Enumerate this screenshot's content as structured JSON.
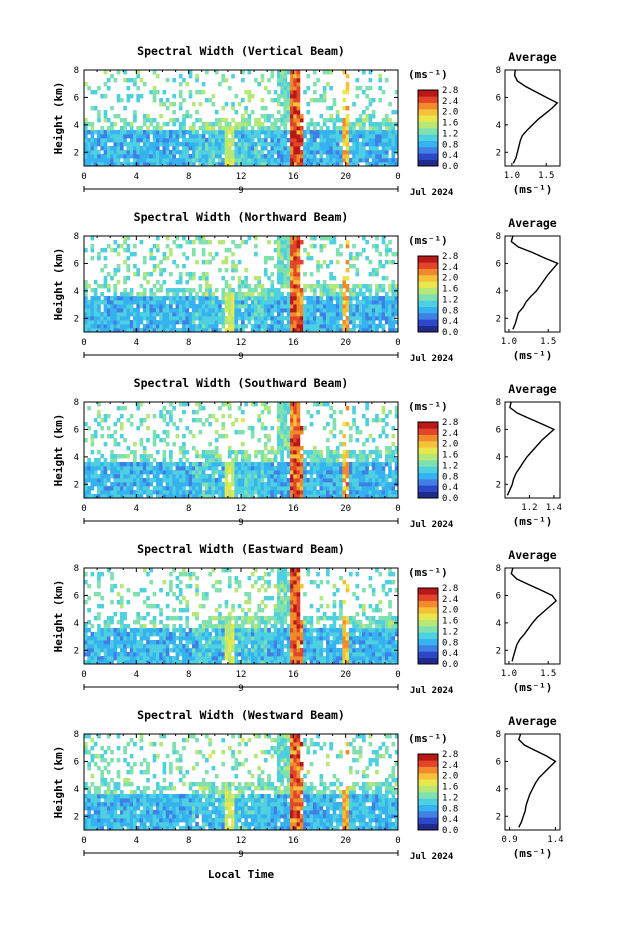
{
  "figure": {
    "xlabel": "Local Time",
    "date_label": "Jul 2024",
    "day_label": "9",
    "unit_label": "(ms⁻¹)",
    "avg_title": "Average",
    "colorbar_ticks": [
      "2.8",
      "2.4",
      "2.0",
      "1.6",
      "1.2",
      "0.8",
      "0.4",
      "0.0"
    ],
    "colormap": [
      "#1f2a8c",
      "#2a48c8",
      "#3f7fe6",
      "#35b2ef",
      "#4fd0e0",
      "#7fe0b0",
      "#b6e878",
      "#e8e84e",
      "#f6c13a",
      "#f08a2a",
      "#e2452a",
      "#b81818"
    ]
  },
  "chart_data": [
    {
      "type": "heatmap",
      "title": "Spectral Width (Vertical Beam)",
      "ylabel": "Height (km)",
      "xlabel": "",
      "x_ticks": [
        "0",
        "4",
        "8",
        "12",
        "16",
        "20",
        "0"
      ],
      "y_ticks": [
        "2",
        "4",
        "6",
        "8"
      ],
      "xlim": [
        0,
        24
      ],
      "ylim": [
        1,
        8
      ],
      "colorbar": {
        "label": "(ms⁻¹)",
        "range": [
          0.0,
          2.8
        ]
      },
      "average_profile": {
        "title": "Average",
        "xlabel": "(ms⁻¹)",
        "x_ticks": [
          "1.0",
          "1.5"
        ],
        "xlim": [
          0.9,
          1.7
        ],
        "y_ticks": [
          "2",
          "4",
          "6",
          "8"
        ],
        "ylim": [
          1,
          8
        ],
        "height": [
          1.2,
          1.6,
          2.0,
          2.4,
          2.8,
          3.2,
          3.6,
          4.0,
          4.4,
          4.8,
          5.2,
          5.6,
          6.0,
          6.4,
          6.8,
          7.2,
          7.6,
          8.0
        ],
        "value": [
          1.02,
          1.06,
          1.08,
          1.1,
          1.12,
          1.15,
          1.22,
          1.3,
          1.38,
          1.48,
          1.58,
          1.66,
          1.5,
          1.35,
          1.2,
          1.08,
          1.04,
          1.05
        ]
      }
    },
    {
      "type": "heatmap",
      "title": "Spectral Width (Northward Beam)",
      "ylabel": "Height (km)",
      "xlabel": "",
      "x_ticks": [
        "0",
        "4",
        "8",
        "12",
        "16",
        "20",
        "0"
      ],
      "y_ticks": [
        "2",
        "4",
        "6",
        "8"
      ],
      "xlim": [
        0,
        24
      ],
      "ylim": [
        1,
        8
      ],
      "colorbar": {
        "label": "(ms⁻¹)",
        "range": [
          0.0,
          2.8
        ]
      },
      "average_profile": {
        "title": "Average",
        "xlabel": "(ms⁻¹)",
        "x_ticks": [
          "1.0",
          "1.5"
        ],
        "xlim": [
          0.95,
          1.65
        ],
        "y_ticks": [
          "2",
          "4",
          "6",
          "8"
        ],
        "ylim": [
          1,
          8
        ],
        "height": [
          1.2,
          1.6,
          2.0,
          2.4,
          2.8,
          3.2,
          3.6,
          4.0,
          4.4,
          4.8,
          5.2,
          5.6,
          6.0,
          6.4,
          6.8,
          7.2,
          7.6,
          8.0
        ],
        "value": [
          1.05,
          1.08,
          1.1,
          1.12,
          1.18,
          1.22,
          1.28,
          1.35,
          1.4,
          1.45,
          1.5,
          1.56,
          1.62,
          1.45,
          1.3,
          1.12,
          1.03,
          1.05
        ]
      }
    },
    {
      "type": "heatmap",
      "title": "Spectral Width (Southward Beam)",
      "ylabel": "Height (km)",
      "xlabel": "",
      "x_ticks": [
        "0",
        "4",
        "8",
        "12",
        "16",
        "20",
        "0"
      ],
      "y_ticks": [
        "2",
        "4",
        "6",
        "8"
      ],
      "xlim": [
        0,
        24
      ],
      "ylim": [
        1,
        8
      ],
      "colorbar": {
        "label": "(ms⁻¹)",
        "range": [
          0.0,
          2.8
        ]
      },
      "average_profile": {
        "title": "Average",
        "xlabel": "(ms⁻¹)",
        "x_ticks": [
          "1.2",
          "1.4"
        ],
        "xlim": [
          1.0,
          1.45
        ],
        "y_ticks": [
          "2",
          "4",
          "6",
          "8"
        ],
        "ylim": [
          1,
          8
        ],
        "height": [
          1.2,
          1.6,
          2.0,
          2.4,
          2.8,
          3.2,
          3.6,
          4.0,
          4.4,
          4.8,
          5.2,
          5.6,
          6.0,
          6.4,
          6.8,
          7.2,
          7.6,
          8.0
        ],
        "value": [
          1.02,
          1.04,
          1.06,
          1.07,
          1.09,
          1.12,
          1.15,
          1.18,
          1.22,
          1.26,
          1.3,
          1.35,
          1.4,
          1.3,
          1.2,
          1.1,
          1.04,
          1.05
        ]
      }
    },
    {
      "type": "heatmap",
      "title": "Spectral Width (Eastward Beam)",
      "ylabel": "Height (km)",
      "xlabel": "",
      "x_ticks": [
        "0",
        "4",
        "8",
        "12",
        "16",
        "20",
        "0"
      ],
      "y_ticks": [
        "2",
        "4",
        "6",
        "8"
      ],
      "xlim": [
        0,
        24
      ],
      "ylim": [
        1,
        8
      ],
      "colorbar": {
        "label": "(ms⁻¹)",
        "range": [
          0.0,
          2.8
        ]
      },
      "average_profile": {
        "title": "Average",
        "xlabel": "(ms⁻¹)",
        "x_ticks": [
          "1.0",
          "1.5"
        ],
        "xlim": [
          0.95,
          1.65
        ],
        "y_ticks": [
          "2",
          "4",
          "6",
          "8"
        ],
        "ylim": [
          1,
          8
        ],
        "height": [
          1.2,
          1.6,
          2.0,
          2.4,
          2.8,
          3.2,
          3.6,
          4.0,
          4.4,
          4.8,
          5.2,
          5.6,
          6.0,
          6.4,
          6.8,
          7.2,
          7.6,
          8.0
        ],
        "value": [
          1.04,
          1.06,
          1.08,
          1.1,
          1.14,
          1.2,
          1.25,
          1.3,
          1.36,
          1.44,
          1.52,
          1.6,
          1.55,
          1.4,
          1.25,
          1.1,
          1.03,
          1.05
        ]
      }
    },
    {
      "type": "heatmap",
      "title": "Spectral Width (Westward Beam)",
      "ylabel": "Height (km)",
      "xlabel": "Local Time",
      "x_ticks": [
        "0",
        "4",
        "8",
        "12",
        "16",
        "20",
        "0"
      ],
      "y_ticks": [
        "2",
        "4",
        "6",
        "8"
      ],
      "xlim": [
        0,
        24
      ],
      "ylim": [
        1,
        8
      ],
      "colorbar": {
        "label": "(ms⁻¹)",
        "range": [
          0.0,
          2.8
        ]
      },
      "average_profile": {
        "title": "Average",
        "xlabel": "(ms⁻¹)",
        "x_ticks": [
          "0.9",
          "1.4"
        ],
        "xlim": [
          0.85,
          1.45
        ],
        "y_ticks": [
          "2",
          "4",
          "6",
          "8"
        ],
        "ylim": [
          1,
          8
        ],
        "height": [
          1.2,
          1.6,
          2.0,
          2.4,
          2.8,
          3.2,
          3.6,
          4.0,
          4.4,
          4.8,
          5.2,
          5.6,
          6.0,
          6.4,
          6.8,
          7.2,
          7.6,
          8.0
        ],
        "value": [
          1.0,
          1.03,
          1.05,
          1.07,
          1.08,
          1.1,
          1.12,
          1.15,
          1.18,
          1.22,
          1.28,
          1.34,
          1.4,
          1.3,
          1.18,
          1.06,
          1.0,
          1.02
        ]
      }
    }
  ]
}
